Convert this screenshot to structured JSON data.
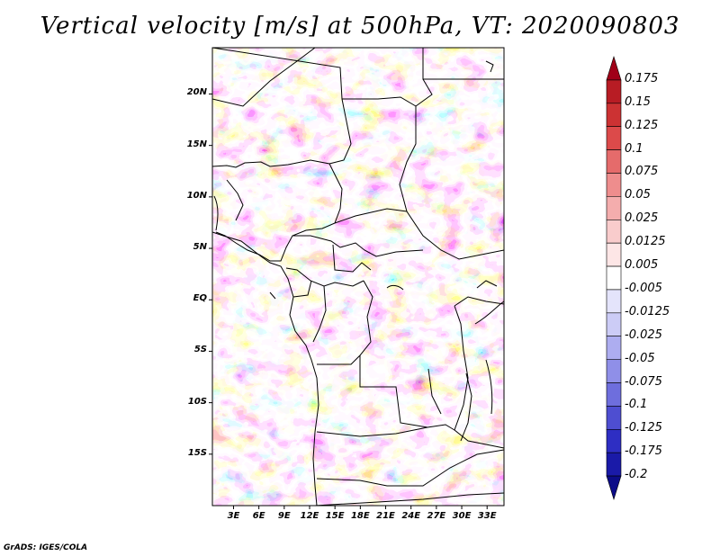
{
  "title": "Vertical velocity [m/s] at 500hPa, VT: 2020090803",
  "credit": "GrADS: IGES/COLA",
  "map": {
    "lat_labels": [
      "20N",
      "15N",
      "10N",
      "5N",
      "EQ",
      "5S",
      "10S",
      "15S"
    ],
    "lat_values": [
      20,
      15,
      10,
      5,
      0,
      -5,
      -10,
      -15
    ],
    "lon_labels": [
      "3E",
      "6E",
      "9E",
      "12E",
      "15E",
      "18E",
      "21E",
      "24E",
      "27E",
      "30E",
      "33E"
    ],
    "lon_values": [
      3,
      6,
      9,
      12,
      15,
      18,
      21,
      24,
      27,
      30,
      33
    ],
    "lon_range": [
      0.5,
      35
    ],
    "lat_range": [
      -20,
      24.5
    ]
  },
  "colorbar": {
    "labels": [
      "0.175",
      "0.15",
      "0.125",
      "0.1",
      "0.075",
      "0.05",
      "0.025",
      "0.0125",
      "0.005",
      "-0.005",
      "-0.0125",
      "-0.025",
      "-0.05",
      "-0.075",
      "-0.1",
      "-0.125",
      "-0.175",
      "-0.2"
    ],
    "colors": [
      "#a00018",
      "#b81c24",
      "#cc3233",
      "#dc4a4a",
      "#e56b6b",
      "#ee8d8d",
      "#f4adad",
      "#f9cccc",
      "#fde6e6",
      "#ffffff",
      "#e4e4fb",
      "#ccccf6",
      "#adadf0",
      "#8f8fe8",
      "#6e6edd",
      "#4e4ed1",
      "#2e2ec3",
      "#1a1aa8",
      "#0c0c88"
    ]
  }
}
